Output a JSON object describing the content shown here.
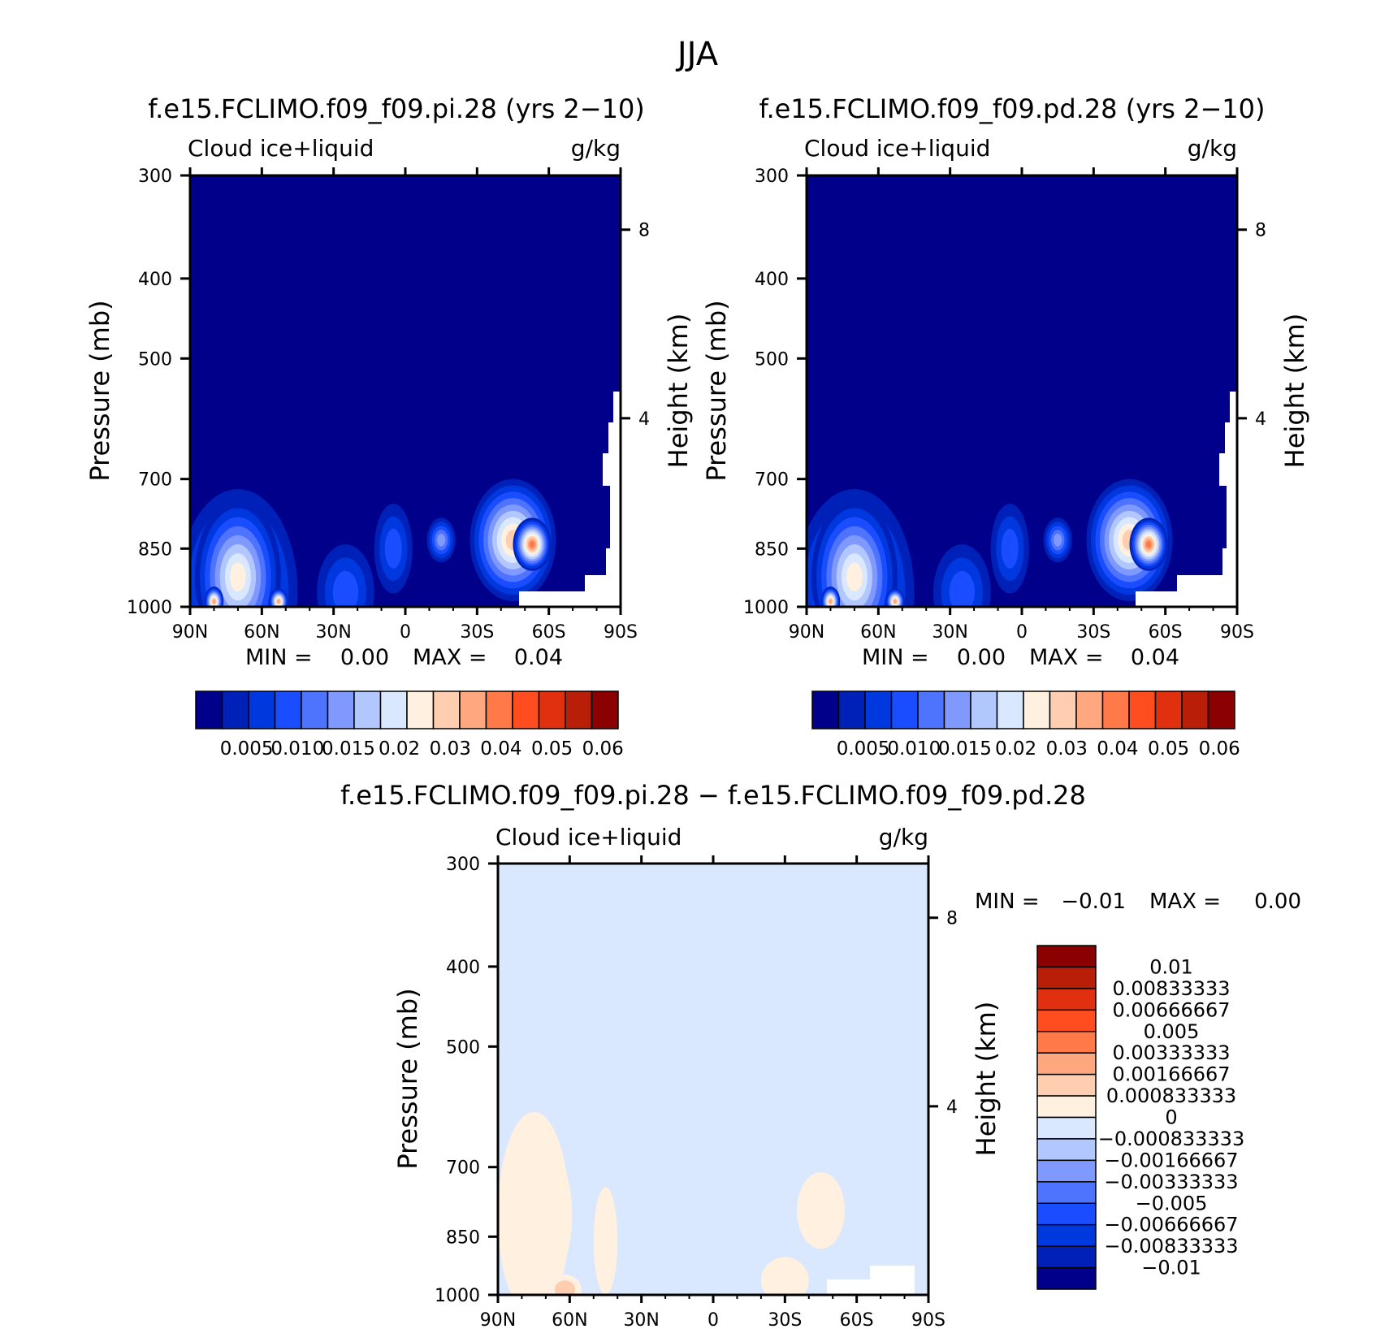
{
  "main_title": "JJA",
  "chart_data": [
    {
      "type": "heatmap",
      "title": "f.e15.FCLIMO.f09_f09.pi.28 (yrs 2−10)",
      "left_string": "Cloud ice+liquid",
      "right_string": "g/kg",
      "ylabel": "Pressure (mb)",
      "ylabel_right": "Height (km)",
      "x_ticks": [
        "90N",
        "60N",
        "30N",
        "0",
        "30S",
        "60S",
        "90S"
      ],
      "y_ticks": [
        "300",
        "400",
        "500",
        "700",
        "850",
        "1000"
      ],
      "y_right_ticks": [
        "8",
        "4"
      ],
      "xlim": [
        90,
        -90
      ],
      "ylim": [
        1000,
        300
      ],
      "min_label": "MIN =",
      "min_value": "0.00",
      "max_label": "MAX =",
      "max_value": "0.04",
      "colorbar": {
        "orientation": "horizontal",
        "colors": [
          "#00008b",
          "#0021b8",
          "#0038e0",
          "#1a4dff",
          "#4d73ff",
          "#8099ff",
          "#b3c7ff",
          "#d9e8ff",
          "#fff0e0",
          "#ffcdb0",
          "#ffa880",
          "#ff7a48",
          "#ff4d20",
          "#e03010",
          "#b81e08",
          "#8b0000"
        ],
        "labels": [
          "0.005",
          "0.010",
          "0.015",
          "0.02",
          "0.03",
          "0.04",
          "0.05",
          "0.06"
        ]
      },
      "blobs": [
        {
          "lat": 70,
          "p": 960,
          "rx": 25,
          "rp": 240,
          "level": 6
        },
        {
          "lat": 70,
          "p": 920,
          "rx": 18,
          "rp": 180,
          "level": 8
        },
        {
          "lat": 80,
          "p": 985,
          "rx": 4,
          "rp": 40,
          "level": 10
        },
        {
          "lat": 53,
          "p": 985,
          "rx": 4,
          "rp": 35,
          "level": 10
        },
        {
          "lat": 25,
          "p": 960,
          "rx": 12,
          "rp": 120,
          "level": 3
        },
        {
          "lat": 5,
          "p": 850,
          "rx": 8,
          "rp": 100,
          "level": 3
        },
        {
          "lat": -45,
          "p": 830,
          "rx": 18,
          "rp": 130,
          "level": 9
        },
        {
          "lat": -53,
          "p": 840,
          "rx": 8,
          "rp": 60,
          "level": 11
        },
        {
          "lat": -15,
          "p": 830,
          "rx": 6,
          "rp": 50,
          "level": 5
        }
      ]
    },
    {
      "type": "heatmap",
      "title": "f.e15.FCLIMO.f09_f09.pd.28 (yrs 2−10)",
      "left_string": "Cloud ice+liquid",
      "right_string": "g/kg",
      "ylabel": "Pressure (mb)",
      "ylabel_right": "Height (km)",
      "x_ticks": [
        "90N",
        "60N",
        "30N",
        "0",
        "30S",
        "60S",
        "90S"
      ],
      "y_ticks": [
        "300",
        "400",
        "500",
        "700",
        "850",
        "1000"
      ],
      "y_right_ticks": [
        "8",
        "4"
      ],
      "xlim": [
        90,
        -90
      ],
      "ylim": [
        1000,
        300
      ],
      "min_label": "MIN =",
      "min_value": "0.00",
      "max_label": "MAX =",
      "max_value": "0.04",
      "colorbar": {
        "orientation": "horizontal",
        "colors": [
          "#00008b",
          "#0021b8",
          "#0038e0",
          "#1a4dff",
          "#4d73ff",
          "#8099ff",
          "#b3c7ff",
          "#d9e8ff",
          "#fff0e0",
          "#ffcdb0",
          "#ffa880",
          "#ff7a48",
          "#ff4d20",
          "#e03010",
          "#b81e08",
          "#8b0000"
        ],
        "labels": [
          "0.005",
          "0.010",
          "0.015",
          "0.02",
          "0.03",
          "0.04",
          "0.05",
          "0.06"
        ]
      },
      "blobs": [
        {
          "lat": 70,
          "p": 960,
          "rx": 25,
          "rp": 240,
          "level": 6
        },
        {
          "lat": 70,
          "p": 920,
          "rx": 18,
          "rp": 180,
          "level": 8
        },
        {
          "lat": 80,
          "p": 985,
          "rx": 4,
          "rp": 40,
          "level": 10
        },
        {
          "lat": 53,
          "p": 985,
          "rx": 4,
          "rp": 35,
          "level": 10
        },
        {
          "lat": 25,
          "p": 960,
          "rx": 12,
          "rp": 120,
          "level": 3
        },
        {
          "lat": 5,
          "p": 850,
          "rx": 8,
          "rp": 100,
          "level": 3
        },
        {
          "lat": -45,
          "p": 830,
          "rx": 18,
          "rp": 130,
          "level": 9
        },
        {
          "lat": -53,
          "p": 840,
          "rx": 8,
          "rp": 60,
          "level": 11
        },
        {
          "lat": -15,
          "p": 830,
          "rx": 6,
          "rp": 50,
          "level": 5
        }
      ]
    },
    {
      "type": "heatmap",
      "title": "f.e15.FCLIMO.f09_f09.pi.28 − f.e15.FCLIMO.f09_f09.pd.28",
      "left_string": "Cloud ice+liquid",
      "right_string": "g/kg",
      "ylabel": "Pressure (mb)",
      "ylabel_right": "Height (km)",
      "x_ticks": [
        "90N",
        "60N",
        "30N",
        "0",
        "30S",
        "60S",
        "90S"
      ],
      "y_ticks": [
        "300",
        "400",
        "500",
        "700",
        "850",
        "1000"
      ],
      "y_right_ticks": [
        "8",
        "4"
      ],
      "xlim": [
        90,
        -90
      ],
      "ylim": [
        1000,
        300
      ],
      "min_label": "MIN =",
      "min_value": "−0.01",
      "max_label": "MAX =",
      "max_value": "0.00",
      "colorbar": {
        "orientation": "vertical",
        "colors": [
          "#8b0000",
          "#b81e08",
          "#e03010",
          "#ff4d20",
          "#ff7a48",
          "#ffa880",
          "#ffcdb0",
          "#fff0e0",
          "#d9e8ff",
          "#b3c7ff",
          "#8099ff",
          "#4d73ff",
          "#1a4dff",
          "#0038e0",
          "#0021b8",
          "#00008b"
        ],
        "labels": [
          "0.01",
          "0.00833333",
          "0.00666667",
          "0.005",
          "0.00333333",
          "0.00166667",
          "0.000833333",
          "0",
          "−0.000833333",
          "−0.00166667",
          "−0.00333333",
          "−0.005",
          "−0.00666667",
          "−0.00833333",
          "−0.01"
        ]
      },
      "blobs": [
        {
          "lat": 75,
          "p": 800,
          "rx": 15,
          "rp": 200,
          "level": 5
        },
        {
          "lat": 67,
          "p": 800,
          "rx": 8,
          "rp": 120,
          "level": 4
        },
        {
          "lat": 62,
          "p": 985,
          "rx": 7,
          "rp": 40,
          "level": 9
        },
        {
          "lat": 45,
          "p": 860,
          "rx": 5,
          "rp": 120,
          "level": 5
        },
        {
          "lat": -45,
          "p": 790,
          "rx": 10,
          "rp": 80,
          "level": 5
        },
        {
          "lat": -30,
          "p": 960,
          "rx": 10,
          "rp": 60,
          "level": 8
        }
      ]
    }
  ]
}
